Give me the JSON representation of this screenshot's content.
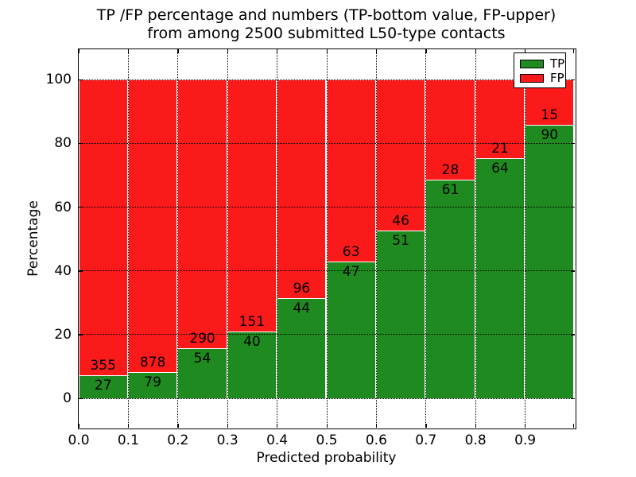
{
  "chart_data": {
    "type": "bar",
    "stacked": true,
    "title_line1": "TP /FP percentage and numbers (TP-bottom value, FP-upper)",
    "title_line2": "from among 2500 submitted L50-type contacts",
    "xlabel": "Predicted probability",
    "ylabel": "Percentage",
    "total_contacts": 2500,
    "x_bin_width": 0.1,
    "xlim": [
      0.0,
      1.0
    ],
    "ylim": [
      -9.2,
      109.5
    ],
    "xticks": [
      "0.0",
      "0.1",
      "0.2",
      "0.3",
      "0.4",
      "0.5",
      "0.6",
      "0.7",
      "0.8",
      "0.9"
    ],
    "yticks": [
      0,
      20,
      40,
      60,
      80,
      100
    ],
    "grid": "dotted black, drawn above bars",
    "bar_note": "each bin stacks to 100%; green height = TP/(TP+FP)*100, labels show raw counts (TP below boundary, FP above)",
    "series": [
      {
        "name": "TP",
        "color": "#1f8a1f",
        "counts": [
          27,
          79,
          54,
          40,
          44,
          47,
          51,
          61,
          64,
          90
        ]
      },
      {
        "name": "FP",
        "color": "#fa1a1a",
        "counts": [
          355,
          878,
          290,
          151,
          96,
          63,
          46,
          28,
          21,
          15
        ]
      }
    ],
    "tp_percentages": [
      7.07,
      8.25,
      15.7,
      20.94,
      31.43,
      42.73,
      52.58,
      68.54,
      75.29,
      85.71
    ],
    "legend": {
      "position": "upper right",
      "entries": [
        "TP",
        "FP"
      ]
    },
    "colors": {
      "tp_green": "#1f8a1f",
      "fp_red": "#fa1a1a",
      "grid": "#000000",
      "background": "#ffffff"
    }
  }
}
